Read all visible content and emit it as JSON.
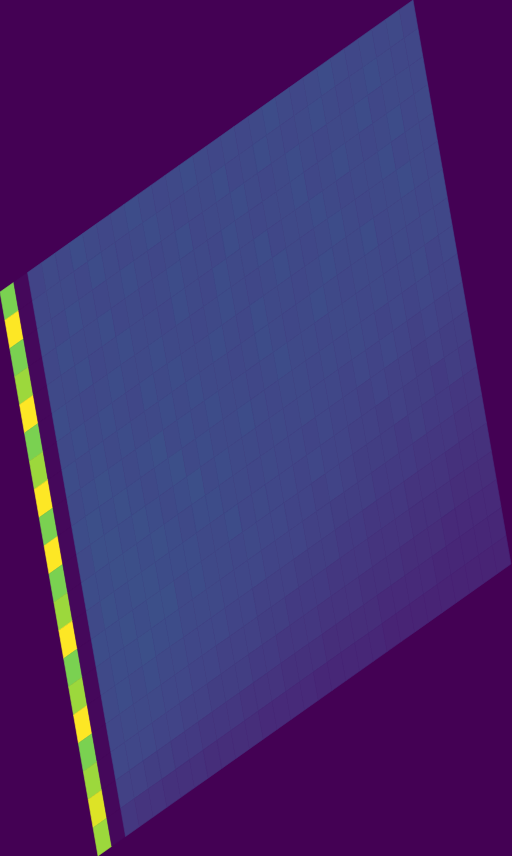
{
  "chart_data": {
    "type": "heatmap",
    "color_range": [
      0,
      1
    ],
    "cells": [
      [
        0.8,
        0.02,
        0.2,
        0.22,
        0.21,
        0.23,
        0.22,
        0.21,
        0.22,
        0.23,
        0.22,
        0.21,
        0.22,
        0.23,
        0.22,
        0.21,
        0.22,
        0.21,
        0.22,
        0.23,
        0.22,
        0.21,
        0.22,
        0.23,
        0.22,
        0.21,
        0.22,
        0.21,
        0.22,
        0.2
      ],
      [
        1.0,
        0.02,
        0.21,
        0.22,
        0.22,
        0.21,
        0.23,
        0.22,
        0.21,
        0.22,
        0.23,
        0.22,
        0.21,
        0.22,
        0.22,
        0.23,
        0.21,
        0.22,
        0.23,
        0.22,
        0.21,
        0.22,
        0.23,
        0.22,
        0.21,
        0.22,
        0.23,
        0.22,
        0.21,
        0.21
      ],
      [
        0.8,
        0.02,
        0.22,
        0.21,
        0.23,
        0.22,
        0.21,
        0.22,
        0.23,
        0.22,
        0.21,
        0.22,
        0.23,
        0.21,
        0.22,
        0.22,
        0.23,
        0.22,
        0.21,
        0.22,
        0.23,
        0.22,
        0.21,
        0.22,
        0.22,
        0.23,
        0.21,
        0.22,
        0.22,
        0.21
      ],
      [
        0.85,
        0.02,
        0.21,
        0.23,
        0.22,
        0.22,
        0.23,
        0.21,
        0.22,
        0.21,
        0.22,
        0.23,
        0.22,
        0.22,
        0.21,
        0.23,
        0.22,
        0.21,
        0.22,
        0.22,
        0.23,
        0.21,
        0.22,
        0.23,
        0.22,
        0.21,
        0.22,
        0.23,
        0.21,
        0.22
      ],
      [
        1.0,
        0.02,
        0.22,
        0.22,
        0.23,
        0.21,
        0.22,
        0.23,
        0.22,
        0.22,
        0.21,
        0.23,
        0.22,
        0.21,
        0.23,
        0.22,
        0.22,
        0.23,
        0.21,
        0.22,
        0.22,
        0.23,
        0.22,
        0.21,
        0.22,
        0.22,
        0.23,
        0.21,
        0.22,
        0.21
      ],
      [
        0.8,
        0.02,
        0.23,
        0.22,
        0.21,
        0.22,
        0.23,
        0.22,
        0.22,
        0.23,
        0.22,
        0.22,
        0.21,
        0.22,
        0.23,
        0.22,
        0.21,
        0.22,
        0.23,
        0.22,
        0.21,
        0.22,
        0.23,
        0.22,
        0.21,
        0.22,
        0.22,
        0.23,
        0.22,
        0.21
      ],
      [
        0.85,
        0.02,
        0.22,
        0.23,
        0.22,
        0.23,
        0.22,
        0.21,
        0.23,
        0.22,
        0.23,
        0.22,
        0.22,
        0.23,
        0.22,
        0.21,
        0.23,
        0.22,
        0.22,
        0.21,
        0.22,
        0.23,
        0.22,
        0.22,
        0.23,
        0.21,
        0.22,
        0.22,
        0.21,
        0.22
      ],
      [
        1.0,
        0.02,
        0.23,
        0.22,
        0.23,
        0.22,
        0.23,
        0.22,
        0.22,
        0.23,
        0.22,
        0.23,
        0.22,
        0.22,
        0.21,
        0.22,
        0.23,
        0.22,
        0.21,
        0.22,
        0.23,
        0.22,
        0.21,
        0.22,
        0.22,
        0.21,
        0.22,
        0.21,
        0.22,
        0.21
      ],
      [
        0.8,
        0.02,
        0.22,
        0.23,
        0.24,
        0.23,
        0.22,
        0.23,
        0.24,
        0.22,
        0.23,
        0.22,
        0.23,
        0.22,
        0.22,
        0.21,
        0.22,
        0.23,
        0.22,
        0.22,
        0.21,
        0.22,
        0.22,
        0.21,
        0.22,
        0.21,
        0.21,
        0.22,
        0.2,
        0.21
      ],
      [
        1.0,
        0.02,
        0.23,
        0.24,
        0.23,
        0.24,
        0.23,
        0.22,
        0.23,
        0.24,
        0.22,
        0.23,
        0.22,
        0.22,
        0.23,
        0.22,
        0.21,
        0.22,
        0.22,
        0.21,
        0.22,
        0.21,
        0.22,
        0.21,
        0.2,
        0.21,
        0.2,
        0.21,
        0.2,
        0.2
      ],
      [
        0.8,
        0.02,
        0.22,
        0.24,
        0.24,
        0.23,
        0.24,
        0.23,
        0.22,
        0.23,
        0.24,
        0.22,
        0.23,
        0.22,
        0.22,
        0.21,
        0.22,
        0.21,
        0.22,
        0.21,
        0.21,
        0.2,
        0.21,
        0.2,
        0.21,
        0.2,
        0.19,
        0.2,
        0.19,
        0.19
      ],
      [
        0.85,
        0.02,
        0.23,
        0.23,
        0.24,
        0.24,
        0.23,
        0.24,
        0.23,
        0.22,
        0.23,
        0.23,
        0.22,
        0.22,
        0.21,
        0.22,
        0.21,
        0.21,
        0.2,
        0.21,
        0.2,
        0.2,
        0.19,
        0.2,
        0.19,
        0.19,
        0.18,
        0.19,
        0.18,
        0.18
      ],
      [
        1.0,
        0.02,
        0.22,
        0.24,
        0.23,
        0.24,
        0.24,
        0.23,
        0.23,
        0.23,
        0.22,
        0.22,
        0.23,
        0.21,
        0.22,
        0.21,
        0.21,
        0.2,
        0.21,
        0.2,
        0.2,
        0.19,
        0.19,
        0.18,
        0.19,
        0.18,
        0.18,
        0.17,
        0.18,
        0.17
      ],
      [
        0.8,
        0.02,
        0.23,
        0.23,
        0.24,
        0.23,
        0.24,
        0.24,
        0.22,
        0.23,
        0.22,
        0.22,
        0.21,
        0.22,
        0.21,
        0.21,
        0.2,
        0.2,
        0.19,
        0.2,
        0.19,
        0.18,
        0.18,
        0.18,
        0.17,
        0.18,
        0.17,
        0.17,
        0.16,
        0.16
      ],
      [
        0.85,
        0.02,
        0.22,
        0.23,
        0.23,
        0.24,
        0.23,
        0.23,
        0.22,
        0.22,
        0.22,
        0.21,
        0.21,
        0.21,
        0.2,
        0.2,
        0.2,
        0.19,
        0.19,
        0.18,
        0.18,
        0.18,
        0.17,
        0.17,
        0.17,
        0.16,
        0.16,
        0.16,
        0.15,
        0.15
      ],
      [
        1.0,
        0.02,
        0.22,
        0.23,
        0.22,
        0.23,
        0.22,
        0.22,
        0.21,
        0.21,
        0.21,
        0.2,
        0.2,
        0.19,
        0.19,
        0.19,
        0.18,
        0.18,
        0.18,
        0.17,
        0.17,
        0.16,
        0.16,
        0.16,
        0.15,
        0.15,
        0.15,
        0.14,
        0.14,
        0.14
      ],
      [
        0.8,
        0.02,
        0.21,
        0.22,
        0.22,
        0.22,
        0.21,
        0.21,
        0.2,
        0.2,
        0.19,
        0.19,
        0.19,
        0.18,
        0.18,
        0.17,
        0.17,
        0.17,
        0.16,
        0.16,
        0.16,
        0.15,
        0.15,
        0.15,
        0.14,
        0.14,
        0.14,
        0.13,
        0.13,
        0.13
      ],
      [
        0.85,
        0.02,
        0.21,
        0.21,
        0.21,
        0.2,
        0.2,
        0.19,
        0.19,
        0.18,
        0.18,
        0.18,
        0.17,
        0.17,
        0.16,
        0.16,
        0.16,
        0.15,
        0.15,
        0.15,
        0.14,
        0.14,
        0.14,
        0.13,
        0.13,
        0.13,
        0.12,
        0.12,
        0.12,
        0.12
      ],
      [
        0.95,
        0.02,
        0.19,
        0.19,
        0.18,
        0.18,
        0.17,
        0.17,
        0.16,
        0.16,
        0.16,
        0.15,
        0.15,
        0.15,
        0.14,
        0.14,
        0.14,
        0.13,
        0.13,
        0.13,
        0.13,
        0.12,
        0.12,
        0.12,
        0.12,
        0.11,
        0.11,
        0.11,
        0.11,
        0.11
      ],
      [
        0.85,
        0.02,
        0.16,
        0.15,
        0.15,
        0.14,
        0.14,
        0.14,
        0.13,
        0.13,
        0.13,
        0.13,
        0.12,
        0.12,
        0.12,
        0.12,
        0.11,
        0.11,
        0.11,
        0.11,
        0.11,
        0.1,
        0.1,
        0.1,
        0.1,
        0.1,
        0.1,
        0.1,
        0.1,
        0.1
      ]
    ]
  }
}
